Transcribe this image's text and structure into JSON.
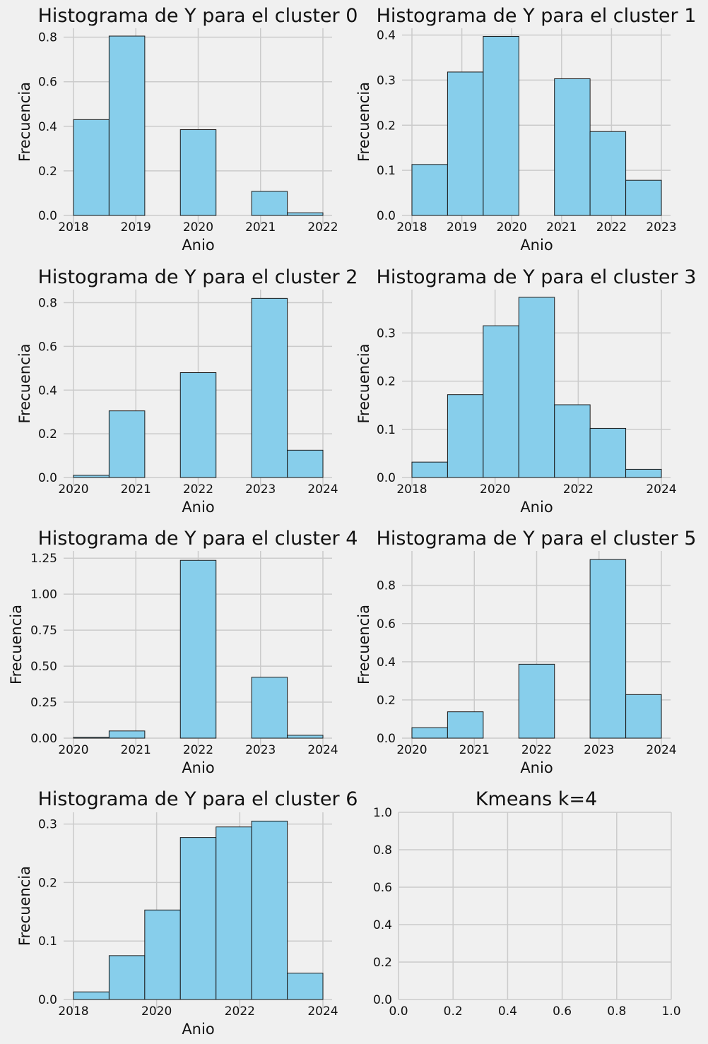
{
  "figure": {
    "background": "#f0f0f0",
    "bar_color": "#87ceeb",
    "edge_color": "#1a1a1a",
    "grid_color": "#cbcbcb"
  },
  "chart_data": [
    {
      "type": "bar",
      "title": "Histograma de Y para el cluster 0",
      "xlabel": "Anio",
      "ylabel": "Frecuencia",
      "xlim": [
        2018,
        2022
      ],
      "ylim": [
        0,
        0.84
      ],
      "xticks": [
        "2018",
        "2019",
        "2020",
        "2021",
        "2022"
      ],
      "xtick_values": [
        2018,
        2019,
        2020,
        2021,
        2022
      ],
      "yticks": [
        "0.0",
        "0.2",
        "0.4",
        "0.6",
        "0.8"
      ],
      "ytick_values": [
        0,
        0.2,
        0.4,
        0.6,
        0.8
      ],
      "bin_edges": [
        2018,
        2018.571,
        2019.143,
        2019.714,
        2020.286,
        2020.857,
        2021.429,
        2022
      ],
      "values": [
        0.43,
        0.805,
        0,
        0.385,
        0,
        0.108,
        0.012
      ],
      "grid": true
    },
    {
      "type": "bar",
      "title": "Histograma de Y para el cluster 1",
      "xlabel": "Anio",
      "ylabel": "Frecuencia",
      "xlim": [
        2018,
        2023
      ],
      "ylim": [
        0,
        0.415
      ],
      "xticks": [
        "2018",
        "2019",
        "2020",
        "2021",
        "2022",
        "2023"
      ],
      "xtick_values": [
        2018,
        2019,
        2020,
        2021,
        2022,
        2023
      ],
      "yticks": [
        "0.0",
        "0.1",
        "0.2",
        "0.3",
        "0.4"
      ],
      "ytick_values": [
        0,
        0.1,
        0.2,
        0.3,
        0.4
      ],
      "bin_edges": [
        2018,
        2018.714,
        2019.429,
        2020.143,
        2020.857,
        2021.571,
        2022.286,
        2023
      ],
      "values": [
        0.113,
        0.318,
        0.397,
        0,
        0.303,
        0.186,
        0.078
      ],
      "grid": true
    },
    {
      "type": "bar",
      "title": "Histograma de Y para el cluster 2",
      "xlabel": "Anio",
      "ylabel": "Frecuencia",
      "xlim": [
        2020,
        2024
      ],
      "ylim": [
        0,
        0.86
      ],
      "xticks": [
        "2020",
        "2021",
        "2022",
        "2023",
        "2024"
      ],
      "xtick_values": [
        2020,
        2021,
        2022,
        2023,
        2024
      ],
      "yticks": [
        "0.0",
        "0.2",
        "0.4",
        "0.6",
        "0.8"
      ],
      "ytick_values": [
        0,
        0.2,
        0.4,
        0.6,
        0.8
      ],
      "bin_edges": [
        2020,
        2020.571,
        2021.143,
        2021.714,
        2022.286,
        2022.857,
        2023.429,
        2024
      ],
      "values": [
        0.01,
        0.305,
        0,
        0.48,
        0,
        0.82,
        0.125
      ],
      "grid": true
    },
    {
      "type": "bar",
      "title": "Histograma de Y para el cluster 3",
      "xlabel": "Anio",
      "ylabel": "Frecuencia",
      "xlim": [
        2018,
        2024
      ],
      "ylim": [
        0,
        0.39
      ],
      "xticks": [
        "2018",
        "2020",
        "2022",
        "2024"
      ],
      "xtick_values": [
        2018,
        2020,
        2022,
        2024
      ],
      "yticks": [
        "0.0",
        "0.1",
        "0.2",
        "0.3"
      ],
      "ytick_values": [
        0,
        0.1,
        0.2,
        0.3
      ],
      "bin_edges": [
        2018,
        2018.857,
        2019.714,
        2020.571,
        2021.429,
        2022.286,
        2023.143,
        2024
      ],
      "values": [
        0.032,
        0.172,
        0.315,
        0.374,
        0.151,
        0.102,
        0.017
      ],
      "grid": true
    },
    {
      "type": "bar",
      "title": "Histograma de Y para el cluster 4",
      "xlabel": "Anio",
      "ylabel": "Frecuencia",
      "xlim": [
        2020,
        2024
      ],
      "ylim": [
        0,
        1.3
      ],
      "xticks": [
        "2020",
        "2021",
        "2022",
        "2023",
        "2024"
      ],
      "xtick_values": [
        2020,
        2021,
        2022,
        2023,
        2024
      ],
      "yticks": [
        "0.00",
        "0.25",
        "0.50",
        "0.75",
        "1.00",
        "1.25"
      ],
      "ytick_values": [
        0,
        0.25,
        0.5,
        0.75,
        1.0,
        1.25
      ],
      "bin_edges": [
        2020,
        2020.571,
        2021.143,
        2021.714,
        2022.286,
        2022.857,
        2023.429,
        2024
      ],
      "values": [
        0.006,
        0.05,
        0,
        1.235,
        0,
        0.423,
        0.02
      ],
      "grid": true
    },
    {
      "type": "bar",
      "title": "Histograma de Y para el cluster 5",
      "xlabel": "Anio",
      "ylabel": "Frecuencia",
      "xlim": [
        2020,
        2024
      ],
      "ylim": [
        0,
        0.98
      ],
      "xticks": [
        "2020",
        "2021",
        "2022",
        "2023",
        "2024"
      ],
      "xtick_values": [
        2020,
        2021,
        2022,
        2023,
        2024
      ],
      "yticks": [
        "0.0",
        "0.2",
        "0.4",
        "0.6",
        "0.8"
      ],
      "ytick_values": [
        0,
        0.2,
        0.4,
        0.6,
        0.8
      ],
      "bin_edges": [
        2020,
        2020.571,
        2021.143,
        2021.714,
        2022.286,
        2022.857,
        2023.429,
        2024
      ],
      "values": [
        0.055,
        0.138,
        0,
        0.387,
        0,
        0.935,
        0.228
      ],
      "grid": true
    },
    {
      "type": "bar",
      "title": "Histograma de Y para el cluster 6",
      "xlabel": "Anio",
      "ylabel": "Frecuencia",
      "xlim": [
        2018,
        2024
      ],
      "ylim": [
        0,
        0.32
      ],
      "xticks": [
        "2018",
        "2020",
        "2022",
        "2024"
      ],
      "xtick_values": [
        2018,
        2020,
        2022,
        2024
      ],
      "yticks": [
        "0.0",
        "0.1",
        "0.2",
        "0.3"
      ],
      "ytick_values": [
        0,
        0.1,
        0.2,
        0.3
      ],
      "bin_edges": [
        2018,
        2018.857,
        2019.714,
        2020.571,
        2021.429,
        2022.286,
        2023.143,
        2024
      ],
      "values": [
        0.013,
        0.075,
        0.153,
        0.277,
        0.295,
        0.305,
        0.045
      ],
      "grid": true
    },
    {
      "type": "bar",
      "title": "Kmeans k=4",
      "xlabel": "",
      "ylabel": "",
      "xlim": [
        0,
        1
      ],
      "ylim": [
        0,
        1
      ],
      "xticks": [
        "0.0",
        "0.2",
        "0.4",
        "0.6",
        "0.8",
        "1.0"
      ],
      "xtick_values": [
        0,
        0.2,
        0.4,
        0.6,
        0.8,
        1.0
      ],
      "yticks": [
        "0.0",
        "0.2",
        "0.4",
        "0.6",
        "0.8",
        "1.0"
      ],
      "ytick_values": [
        0,
        0.2,
        0.4,
        0.6,
        0.8,
        1.0
      ],
      "bin_edges": [],
      "values": [],
      "grid": true
    }
  ]
}
